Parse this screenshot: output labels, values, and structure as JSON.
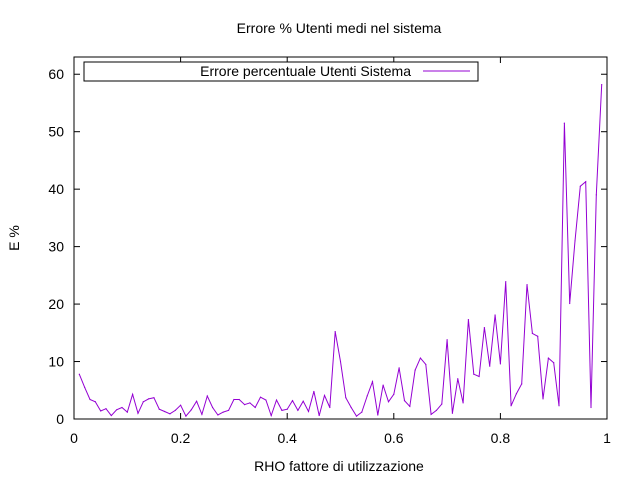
{
  "chart_data": {
    "type": "line",
    "title": "Errore % Utenti medi nel sistema",
    "xlabel": "RHO fattore di utilizzazione",
    "ylabel": "E %",
    "xlim": [
      0,
      1
    ],
    "ylim": [
      0,
      63
    ],
    "xticks": [
      0,
      0.2,
      0.4,
      0.6,
      0.8,
      1
    ],
    "xtick_labels": [
      "0",
      "0.2",
      "0.4",
      "0.6",
      "0.8",
      "1"
    ],
    "yticks": [
      0,
      10,
      20,
      30,
      40,
      50,
      60
    ],
    "ytick_labels": [
      "0",
      "10",
      "20",
      "30",
      "40",
      "50",
      "60"
    ],
    "grid": false,
    "legend_position": "top-left",
    "series": [
      {
        "name": "Errore percentuale Utenti Sistema",
        "color": "#9400d3",
        "x": [
          0.01,
          0.02,
          0.03,
          0.04,
          0.05,
          0.06,
          0.07,
          0.08,
          0.09,
          0.1,
          0.11,
          0.12,
          0.13,
          0.14,
          0.15,
          0.16,
          0.17,
          0.18,
          0.19,
          0.2,
          0.21,
          0.22,
          0.23,
          0.24,
          0.25,
          0.26,
          0.27,
          0.28,
          0.29,
          0.3,
          0.31,
          0.32,
          0.33,
          0.34,
          0.35,
          0.36,
          0.37,
          0.38,
          0.39,
          0.4,
          0.41,
          0.42,
          0.43,
          0.44,
          0.45,
          0.46,
          0.47,
          0.48,
          0.49,
          0.5,
          0.51,
          0.52,
          0.53,
          0.54,
          0.55,
          0.56,
          0.57,
          0.58,
          0.59,
          0.6,
          0.61,
          0.62,
          0.63,
          0.64,
          0.65,
          0.66,
          0.67,
          0.68,
          0.69,
          0.7,
          0.71,
          0.72,
          0.73,
          0.74,
          0.75,
          0.76,
          0.77,
          0.78,
          0.79,
          0.8,
          0.81,
          0.82,
          0.83,
          0.84,
          0.85,
          0.86,
          0.87,
          0.88,
          0.89,
          0.9,
          0.91,
          0.92,
          0.93,
          0.94,
          0.95,
          0.96,
          0.97,
          0.98,
          0.99
        ],
        "y": [
          7.8,
          5.5,
          3.4,
          3.0,
          1.4,
          1.8,
          0.6,
          1.6,
          2.0,
          1.2,
          4.3,
          1.0,
          3.0,
          3.5,
          3.7,
          1.7,
          1.3,
          0.9,
          1.5,
          2.4,
          0.5,
          1.6,
          3.1,
          0.8,
          4.0,
          2.0,
          0.7,
          1.2,
          1.5,
          3.4,
          3.4,
          2.5,
          2.8,
          2.0,
          3.8,
          3.3,
          0.6,
          3.3,
          1.5,
          1.7,
          3.2,
          1.5,
          3.1,
          1.3,
          4.8,
          0.6,
          4.1,
          2.0,
          15.2,
          10.0,
          3.7,
          2.0,
          0.5,
          1.2,
          4.0,
          6.5,
          0.7,
          5.9,
          3.0,
          4.3,
          8.9,
          3.2,
          2.2,
          8.5,
          10.6,
          9.5,
          0.8,
          1.5,
          2.6,
          13.8,
          1.0,
          7.0,
          2.8,
          17.3,
          7.8,
          7.4,
          15.9,
          9.2,
          18.1,
          9.6,
          23.9,
          2.3,
          4.4,
          6.1,
          23.4,
          14.9,
          14.4,
          3.5,
          10.6,
          9.8,
          2.3,
          51.5,
          20.1,
          31.0,
          40.5,
          41.3,
          2.0,
          39.0,
          58.2
        ]
      }
    ]
  }
}
